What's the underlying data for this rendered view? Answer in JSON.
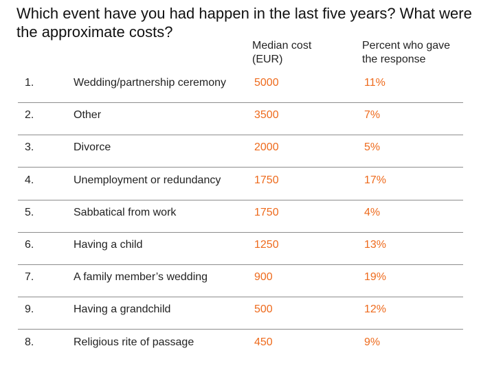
{
  "chart_data": {
    "type": "table",
    "title": "Which event have you had happen in the last five years? What were the approximate costs?",
    "columns": [
      {
        "label_line1": "Median cost",
        "label_line2": "(EUR)"
      },
      {
        "label_line1": "Percent who gave",
        "label_line2": "the response"
      }
    ],
    "rows": [
      {
        "rank": "1.",
        "event": "Wedding/partnership ceremony",
        "median_cost": 5000,
        "percent": "11%"
      },
      {
        "rank": "2.",
        "event": "Other",
        "median_cost": 3500,
        "percent": "7%"
      },
      {
        "rank": "3.",
        "event": "Divorce",
        "median_cost": 2000,
        "percent": "5%"
      },
      {
        "rank": "4.",
        "event": "Unemployment or redundancy",
        "median_cost": 1750,
        "percent": "17%"
      },
      {
        "rank": "5.",
        "event": "Sabbatical from work",
        "median_cost": 1750,
        "percent": "4%"
      },
      {
        "rank": "6.",
        "event": "Having a child",
        "median_cost": 1250,
        "percent": "13%"
      },
      {
        "rank": "7.",
        "event": "A family member’s wedding",
        "median_cost": 900,
        "percent": "19%"
      },
      {
        "rank": "9.",
        "event": "Having a grandchild",
        "median_cost": 500,
        "percent": "12%"
      },
      {
        "rank": "8.",
        "event": "Religious rite of passage",
        "median_cost": 450,
        "percent": "9%"
      }
    ]
  },
  "colors": {
    "accent": "#ee6a1c",
    "text": "#222222",
    "divider": "#8c8c8c"
  }
}
